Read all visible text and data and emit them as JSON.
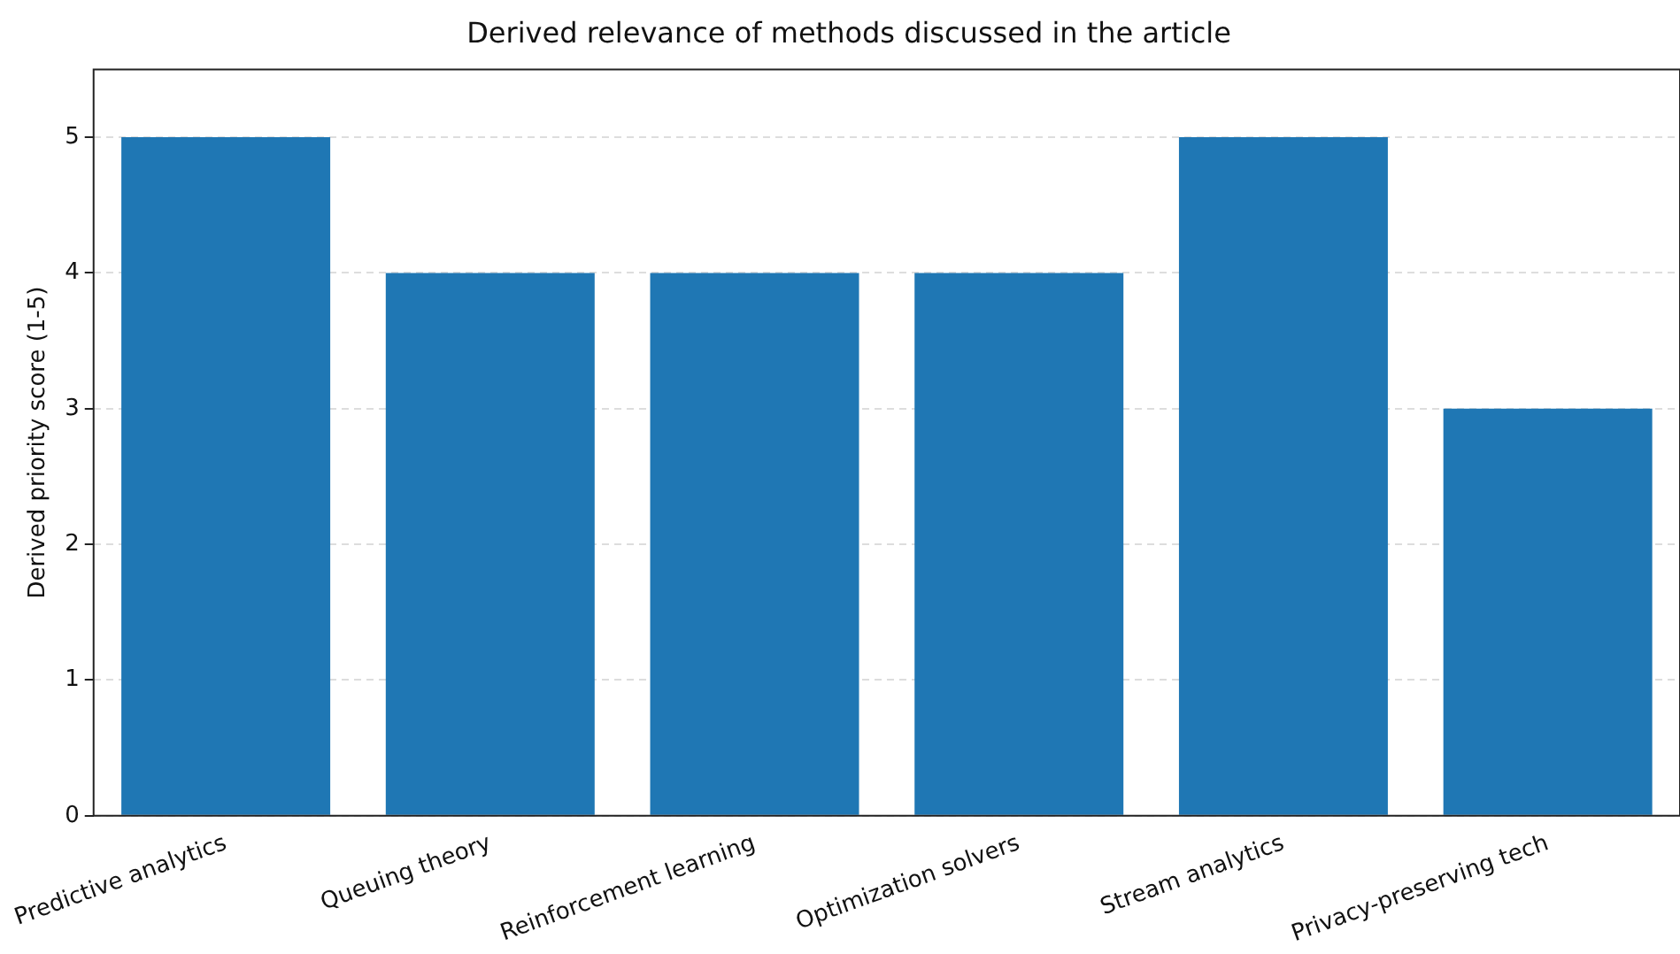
{
  "chart_data": {
    "type": "bar",
    "title": "Derived relevance of methods discussed in the article",
    "ylabel": "Derived priority score (1-5)",
    "categories": [
      "Predictive analytics",
      "Queuing theory",
      "Reinforcement learning",
      "Optimization solvers",
      "Stream analytics",
      "Privacy-preserving tech"
    ],
    "values": [
      5,
      4,
      4,
      4,
      5,
      3
    ],
    "color": "#1f77b4",
    "ylim": [
      0,
      5.5
    ],
    "yticks": [
      0,
      1,
      2,
      3,
      4,
      5
    ],
    "grid": "y"
  }
}
